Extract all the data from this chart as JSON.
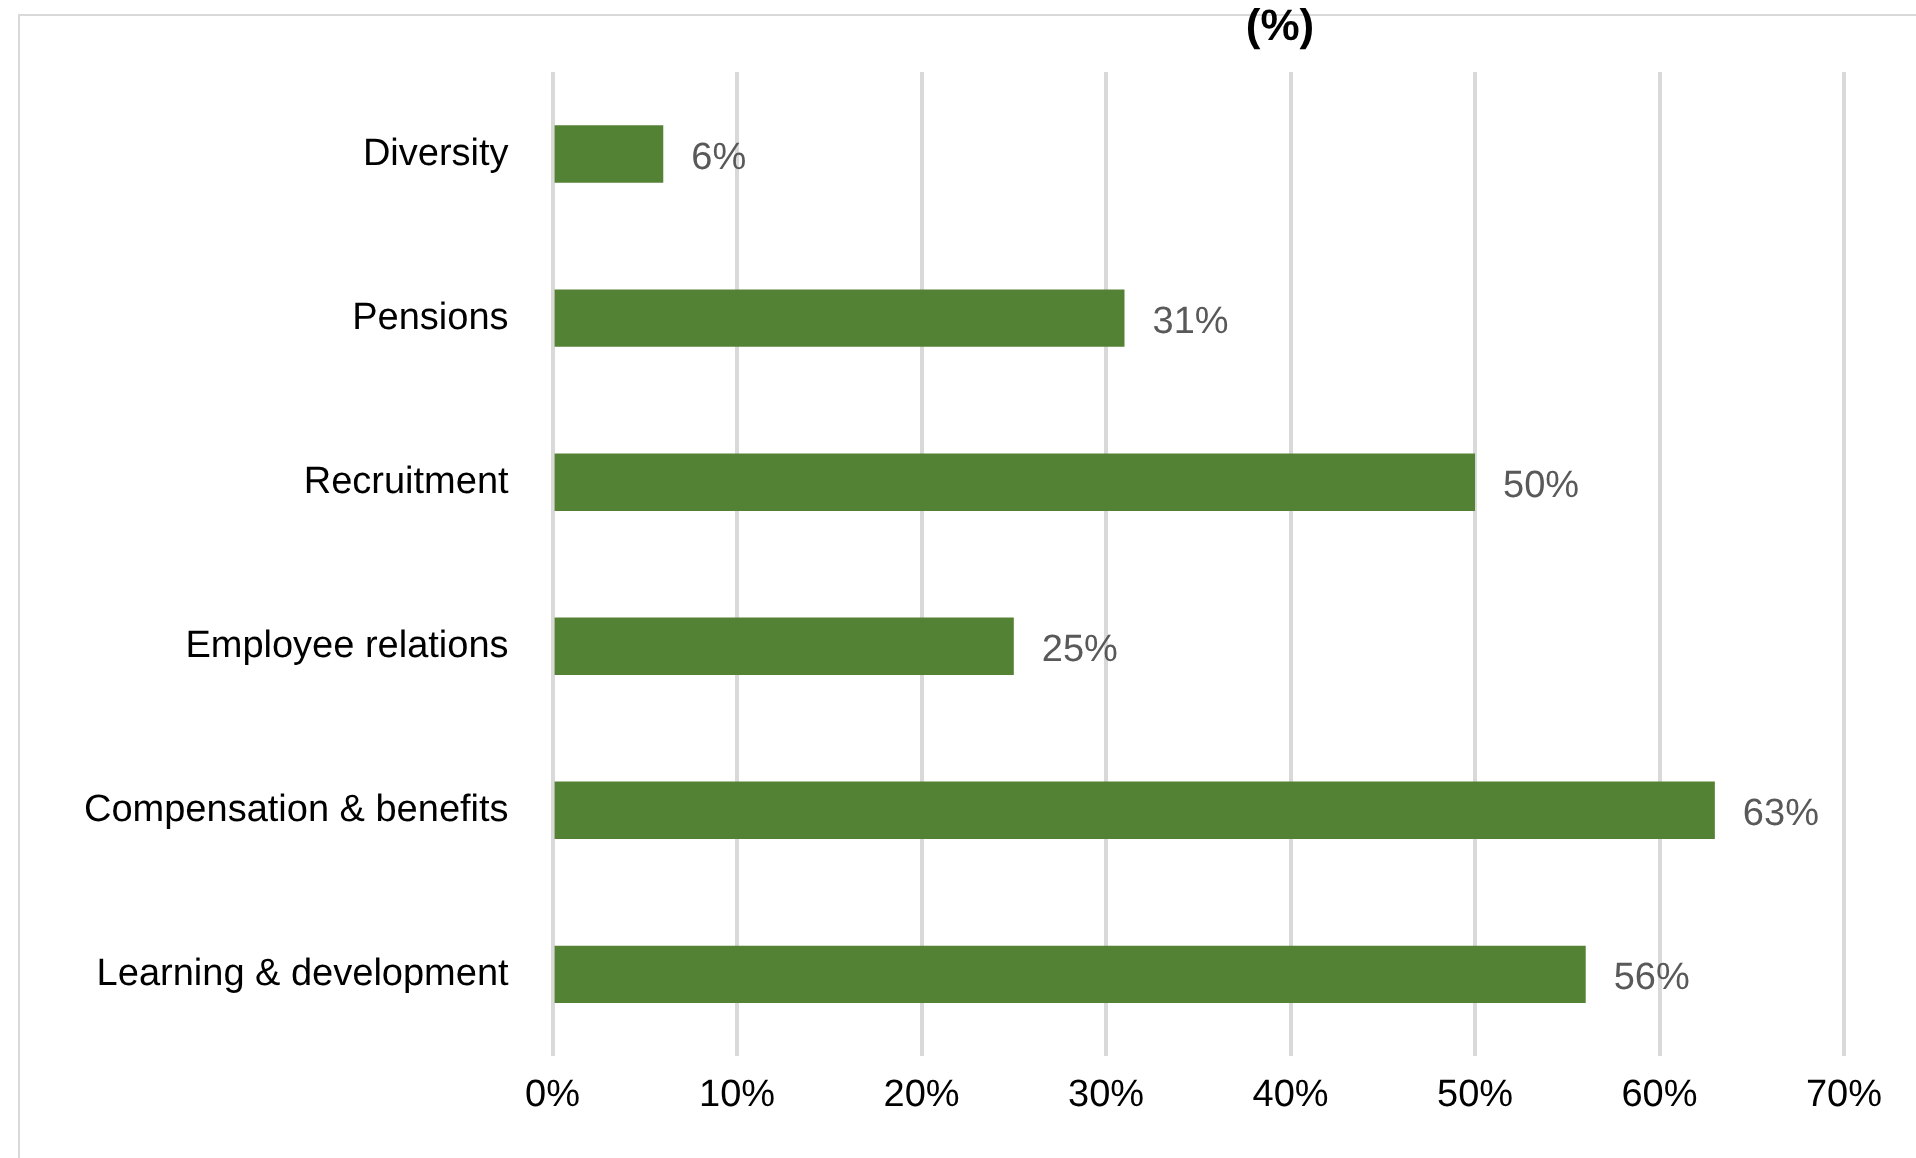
{
  "chart_data": {
    "type": "bar",
    "orientation": "horizontal",
    "title": "(%)",
    "categories": [
      "Diversity",
      "Pensions",
      "Recruitment",
      "Employee relations",
      "Compensation & benefits",
      "Learning & development"
    ],
    "values": [
      6,
      31,
      50,
      25,
      63,
      56
    ],
    "value_labels": [
      "6%",
      "31%",
      "50%",
      "25%",
      "63%",
      "56%"
    ],
    "color": "#548235",
    "xlim": [
      0,
      70
    ],
    "xticks": [
      {
        "value": 0,
        "label": "0%"
      },
      {
        "value": 10,
        "label": "10%"
      },
      {
        "value": 20,
        "label": "20%"
      },
      {
        "value": 30,
        "label": "30%"
      },
      {
        "value": 40,
        "label": "40%"
      },
      {
        "value": 50,
        "label": "50%"
      },
      {
        "value": 60,
        "label": "60%"
      },
      {
        "value": 70,
        "label": "70%"
      }
    ],
    "grid": "x",
    "legend": false
  }
}
